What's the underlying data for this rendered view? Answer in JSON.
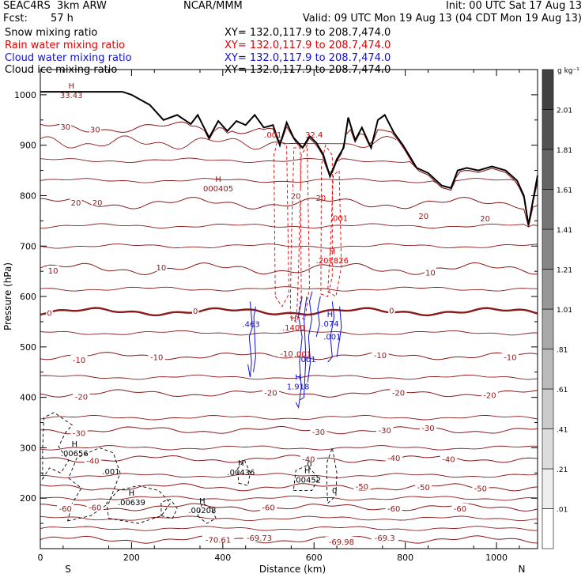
{
  "header": {
    "title_left": "SEAC4RS  3km ARW",
    "title_center": "NCAR/MMM",
    "init": "Init: 00 UTC Sat 17 Aug 13",
    "fcst_label": "Fcst:",
    "fcst_value": "57 h",
    "valid": "Valid: 09 UTC Mon 19 Aug 13 (04 CDT Mon 19 Aug 13)",
    "fields": [
      {
        "label": "Snow mixing ratio",
        "xy": "XY= 132.0,117.9 to 208.7,474.0",
        "color": "#000000"
      },
      {
        "label": "Rain water mixing ratio",
        "xy": "XY= 132.0,117.9 to 208.7,474.0",
        "color": "#e00000"
      },
      {
        "label": "Cloud water mixing ratio",
        "xy": "XY= 132.0,117.9 to 208.7,474.0",
        "color": "#1010d0"
      },
      {
        "label": "Cloud ice mixing ratio",
        "xy": "XY= 132.0,117.9 to 208.7,474.0",
        "color": "#000000"
      }
    ]
  },
  "chart_data": {
    "type": "cross-section",
    "xlabel": "Distance (km)",
    "ylabel": "Pressure (hPa)",
    "xlim": [
      0,
      1090
    ],
    "ylim": [
      1050,
      100
    ],
    "x_ticks": [
      0,
      200,
      400,
      600,
      800,
      1000
    ],
    "y_ticks": [
      200,
      300,
      400,
      500,
      600,
      700,
      800,
      900,
      1000
    ],
    "x_end_labels": {
      "left": "S",
      "right": "N"
    },
    "colorbar": {
      "unit": "g kg⁻¹",
      "levels": [
        ".01",
        ".21",
        ".41",
        ".61",
        ".81",
        "1.01",
        "1.21",
        "1.41",
        "1.61",
        "1.81",
        "2.01"
      ]
    },
    "temperature_contours": {
      "color": "#8b1a1a",
      "levels": [
        -70,
        -60,
        -50,
        -40,
        -30,
        -20,
        -10,
        0,
        10,
        20,
        30
      ],
      "labels": [
        {
          "text": "-70.61",
          "x": 390,
          "p": 118
        },
        {
          "text": "-69.73",
          "x": 480,
          "p": 122
        },
        {
          "text": "-69.98",
          "x": 660,
          "p": 114
        },
        {
          "text": "-69.3",
          "x": 755,
          "p": 122
        },
        {
          "text": "-60",
          "x": 55,
          "p": 180
        },
        {
          "text": "-60",
          "x": 120,
          "p": 182
        },
        {
          "text": "-60",
          "x": 500,
          "p": 182
        },
        {
          "text": "-60",
          "x": 775,
          "p": 180
        },
        {
          "text": "-60",
          "x": 920,
          "p": 180
        },
        {
          "text": "-50",
          "x": 705,
          "p": 224
        },
        {
          "text": "-50",
          "x": 840,
          "p": 222
        },
        {
          "text": "-50",
          "x": 965,
          "p": 220
        },
        {
          "text": "-40",
          "x": 115,
          "p": 275
        },
        {
          "text": "-40",
          "x": 588,
          "p": 278
        },
        {
          "text": "-40",
          "x": 775,
          "p": 280
        },
        {
          "text": "-40",
          "x": 895,
          "p": 278
        },
        {
          "text": "-30",
          "x": 85,
          "p": 330
        },
        {
          "text": "-30",
          "x": 610,
          "p": 332
        },
        {
          "text": "-30",
          "x": 755,
          "p": 335
        },
        {
          "text": "-30",
          "x": 850,
          "p": 340
        },
        {
          "text": "-20",
          "x": 90,
          "p": 402
        },
        {
          "text": "-20",
          "x": 505,
          "p": 410
        },
        {
          "text": "-20",
          "x": 785,
          "p": 410
        },
        {
          "text": "-20",
          "x": 985,
          "p": 405
        },
        {
          "text": "-10",
          "x": 85,
          "p": 475
        },
        {
          "text": "-10",
          "x": 255,
          "p": 480
        },
        {
          "text": "-10",
          "x": 540,
          "p": 487
        },
        {
          "text": "-10",
          "x": 745,
          "p": 484
        },
        {
          "text": "-10",
          "x": 1030,
          "p": 480
        },
        {
          "text": "0",
          "x": 20,
          "p": 568
        },
        {
          "text": "0",
          "x": 340,
          "p": 572
        },
        {
          "text": "0",
          "x": 770,
          "p": 573
        },
        {
          "text": "10",
          "x": 28,
          "p": 652
        },
        {
          "text": "10",
          "x": 265,
          "p": 658
        },
        {
          "text": "10",
          "x": 855,
          "p": 648
        },
        {
          "text": "20",
          "x": 78,
          "p": 787
        },
        {
          "text": "20",
          "x": 125,
          "p": 787
        },
        {
          "text": "20",
          "x": 560,
          "p": 800
        },
        {
          "text": "20",
          "x": 840,
          "p": 760
        },
        {
          "text": "20",
          "x": 975,
          "p": 755
        },
        {
          "text": "30",
          "x": 55,
          "p": 937
        },
        {
          "text": "30",
          "x": 120,
          "p": 932
        }
      ],
      "extrema": [
        {
          "label": "H",
          "value": "000405",
          "x": 390,
          "p": 818
        },
        {
          "label": "H",
          "value": "33.43",
          "x": 68,
          "p": 1003
        }
      ]
    },
    "snow_contours": {
      "color": "#000000",
      "maxima": [
        {
          "label": "H",
          "value": ".00208",
          "x": 355,
          "p": 180
        },
        {
          "label": "H",
          "value": ".00639",
          "x": 200,
          "p": 196
        },
        {
          "label": "H",
          "value": ".00436",
          "x": 440,
          "p": 255
        },
        {
          "label": "H",
          "value": ".00452",
          "x": 585,
          "p": 240
        },
        {
          "label": "H",
          "value": ".00656",
          "x": 75,
          "p": 293
        }
      ],
      "contour_labels": [
        ".001",
        "0",
        "0"
      ]
    },
    "rain_contours": {
      "color": "#e00000",
      "maxima": [
        {
          "label": "H",
          "value": ".1400",
          "x": 555,
          "p": 542
        },
        {
          "label": "H",
          "value": ".201826",
          "x": 640,
          "p": 675
        }
      ],
      "contour_labels": [
        ".001",
        ".001",
        ".001",
        "20",
        "32.4"
      ]
    },
    "cloud_water_contours": {
      "color": "#1010d0",
      "maxima": [
        {
          "label": "H",
          "value": "1.918",
          "x": 565,
          "p": 425
        },
        {
          "label": "H",
          "value": ".074",
          "x": 635,
          "p": 550
        }
      ],
      "contour_labels": [
        ".463",
        ".001",
        ".001"
      ]
    },
    "terrain_outline_km_hPa": [
      [
        0,
        1006
      ],
      [
        180,
        1006
      ],
      [
        200,
        1000
      ],
      [
        240,
        980
      ],
      [
        270,
        950
      ],
      [
        300,
        960
      ],
      [
        330,
        942
      ],
      [
        345,
        960
      ],
      [
        370,
        915
      ],
      [
        390,
        948
      ],
      [
        410,
        928
      ],
      [
        430,
        948
      ],
      [
        450,
        940
      ],
      [
        470,
        960
      ],
      [
        490,
        935
      ],
      [
        510,
        940
      ],
      [
        525,
        900
      ],
      [
        540,
        945
      ],
      [
        555,
        915
      ],
      [
        575,
        895
      ],
      [
        590,
        918
      ],
      [
        605,
        905
      ],
      [
        620,
        882
      ],
      [
        635,
        838
      ],
      [
        650,
        872
      ],
      [
        665,
        895
      ],
      [
        675,
        955
      ],
      [
        690,
        910
      ],
      [
        705,
        935
      ],
      [
        725,
        895
      ],
      [
        740,
        950
      ],
      [
        755,
        960
      ],
      [
        775,
        925
      ],
      [
        795,
        900
      ],
      [
        825,
        855
      ],
      [
        850,
        845
      ],
      [
        880,
        820
      ],
      [
        900,
        815
      ],
      [
        915,
        850
      ],
      [
        935,
        855
      ],
      [
        960,
        850
      ],
      [
        990,
        858
      ],
      [
        1020,
        850
      ],
      [
        1045,
        830
      ],
      [
        1060,
        800
      ],
      [
        1070,
        742
      ],
      [
        1085,
        815
      ],
      [
        1090,
        840
      ]
    ]
  }
}
